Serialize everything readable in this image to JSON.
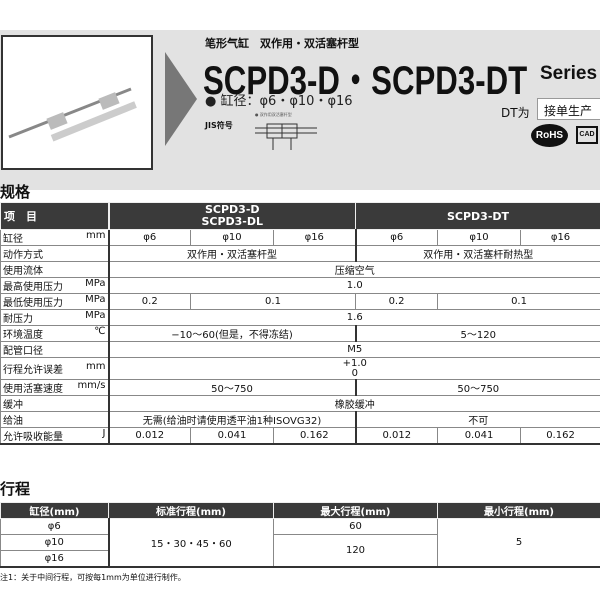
{
  "header": {
    "subtitle": "笔形气缸　双作用・双活塞杆型",
    "title": "SCPD3-D・SCPD3-DT",
    "series": "Series",
    "bore": "● 缸径：φ6・φ10・φ16",
    "jis_label": "JIS符号",
    "symbol_caption": "● 双作用双活塞杆型",
    "dt_label": "DT为",
    "dt_value": "接单生产",
    "rohs": "RoHS",
    "cad": "CAD"
  },
  "spec": {
    "heading": "规格",
    "head": {
      "item": "项　目",
      "d": "SCPD3-D\nSCPD3-DL",
      "dt": "SCPD3-DT"
    },
    "rows": [
      {
        "label": "缸径",
        "unit": "mm",
        "cells": [
          [
            "φ6",
            1
          ],
          [
            "φ10",
            1
          ],
          [
            "φ16",
            1
          ],
          [
            "φ6",
            1
          ],
          [
            "φ10",
            1
          ],
          [
            "φ16",
            1
          ]
        ]
      },
      {
        "label": "动作方式",
        "unit": "",
        "cells": [
          [
            "双作用・双活塞杆型",
            3
          ],
          [
            "双作用・双活塞杆耐热型",
            3
          ]
        ]
      },
      {
        "label": "使用流体",
        "unit": "",
        "cells": [
          [
            "压缩空气",
            6
          ]
        ]
      },
      {
        "label": "最高使用压力",
        "unit": "MPa",
        "cells": [
          [
            "1.0",
            6
          ]
        ]
      },
      {
        "label": "最低使用压力",
        "unit": "MPa",
        "cells": [
          [
            "0.2",
            1
          ],
          [
            "0.1",
            2
          ],
          [
            "0.2",
            1
          ],
          [
            "0.1",
            2
          ]
        ]
      },
      {
        "label": "耐压力",
        "unit": "MPa",
        "cells": [
          [
            "1.6",
            6
          ]
        ]
      },
      {
        "label": "环境温度",
        "unit": "℃",
        "cells": [
          [
            "−10〜60(但是，不得冻结)",
            3
          ],
          [
            "5〜120",
            3
          ]
        ]
      },
      {
        "label": "配管口径",
        "unit": "",
        "cells": [
          [
            "M5",
            6
          ]
        ]
      },
      {
        "label": "行程允许误差",
        "unit": "mm",
        "cells": [
          [
            "+1.0\n0",
            6
          ]
        ]
      },
      {
        "label": "使用活塞速度",
        "unit": "mm/s",
        "cells": [
          [
            "50〜750",
            3
          ],
          [
            "50〜750",
            3
          ]
        ]
      },
      {
        "label": "缓冲",
        "unit": "",
        "cells": [
          [
            "橡胶缓冲",
            6
          ]
        ]
      },
      {
        "label": "给油",
        "unit": "",
        "cells": [
          [
            "无需(给油时请使用透平油1种ISOVG32)",
            3
          ],
          [
            "不可",
            3
          ]
        ]
      },
      {
        "label": "允许吸收能量",
        "unit": "J",
        "cells": [
          [
            "0.012",
            1
          ],
          [
            "0.041",
            1
          ],
          [
            "0.162",
            1
          ],
          [
            "0.012",
            1
          ],
          [
            "0.041",
            1
          ],
          [
            "0.162",
            1
          ]
        ]
      }
    ]
  },
  "stroke": {
    "heading": "行程",
    "headers": [
      "缸径(mm)",
      "标准行程(mm)",
      "最大行程(mm)",
      "最小行程(mm)"
    ],
    "bores": [
      "φ6",
      "φ10",
      "φ16"
    ],
    "standard": "15・30・45・60",
    "max": [
      "60",
      "120"
    ],
    "min": "5",
    "note": "注1：关于中间行程，可按每1mm为单位进行制作。"
  }
}
